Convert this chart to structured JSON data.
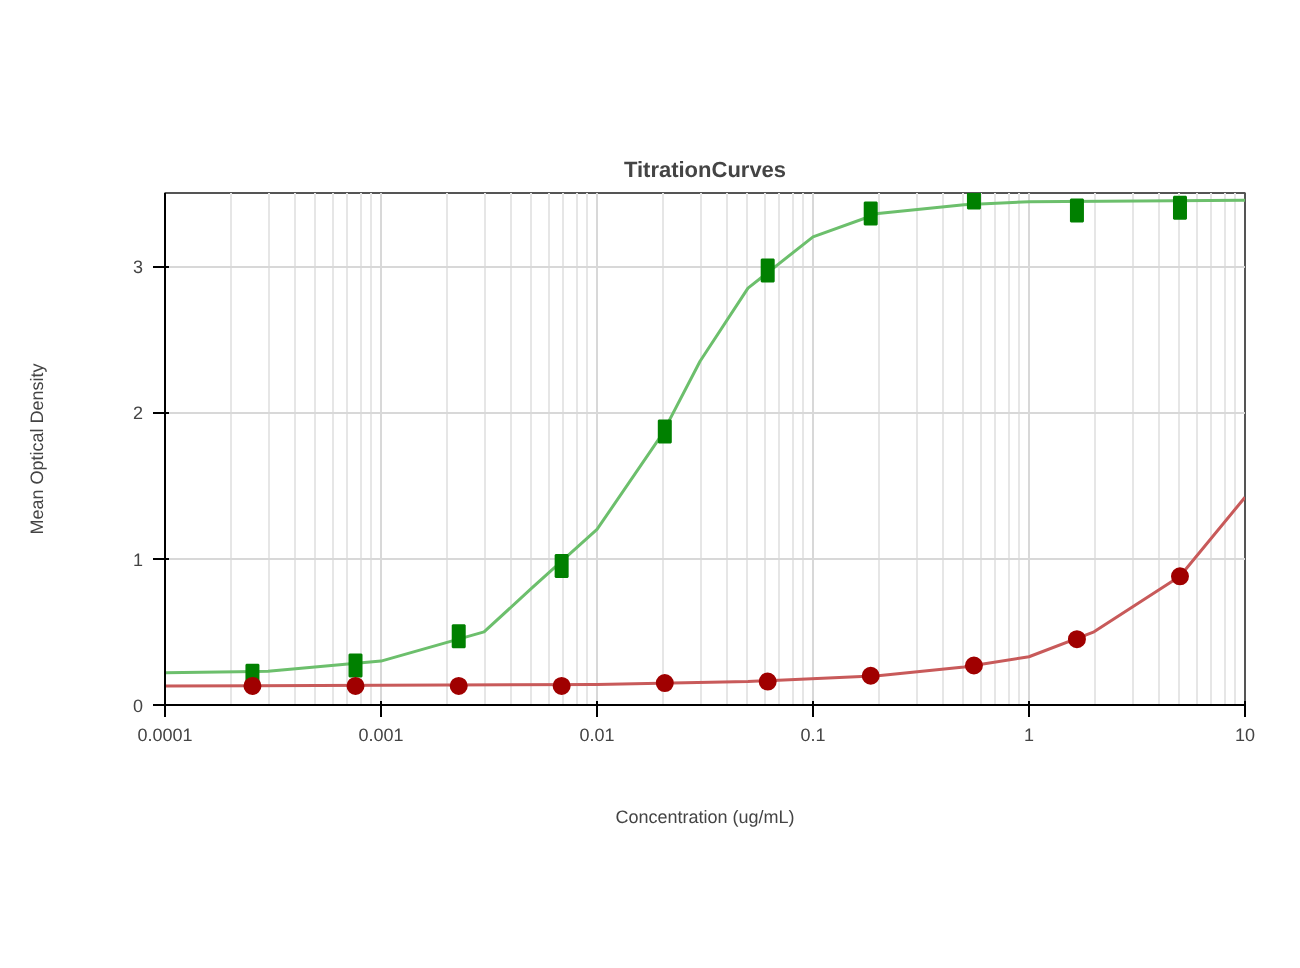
{
  "chart_data": {
    "type": "scatter",
    "title": "TitrationCurves",
    "xlabel": "Concentration (ug/mL)",
    "ylabel": "Mean Optical Density",
    "log": "x",
    "grid": true,
    "xlim": [
      0.0001,
      10
    ],
    "ylim": [
      0,
      3.5
    ],
    "xticks": [
      0.0001,
      0.001,
      0.01,
      0.1,
      1,
      10
    ],
    "yticks": [
      0,
      1,
      2,
      3
    ],
    "series": [
      {
        "type": "line",
        "color": "#6cbf6c",
        "x": [
          0.0001,
          0.0003,
          0.001,
          0.003,
          0.005,
          0.01,
          0.02,
          0.03,
          0.05,
          0.1,
          0.2,
          0.5,
          1,
          10
        ],
        "values": [
          0.22,
          0.23,
          0.3,
          0.5,
          0.8,
          1.2,
          1.85,
          2.35,
          2.85,
          3.2,
          3.36,
          3.42,
          3.44,
          3.45
        ]
      },
      {
        "type": "line",
        "color": "#c85a5a",
        "x": [
          0.0001,
          0.01,
          0.05,
          0.2,
          0.5,
          1,
          2,
          5,
          10
        ],
        "values": [
          0.13,
          0.14,
          0.16,
          0.2,
          0.26,
          0.33,
          0.5,
          0.88,
          1.42
        ]
      },
      {
        "color": "#008000",
        "marker": "square",
        "x": [
          0.000254,
          0.000762,
          0.00229,
          0.00686,
          0.0206,
          0.0617,
          0.185,
          0.556,
          1.667,
          5
        ],
        "values": [
          0.2,
          0.27,
          0.47,
          0.95,
          1.87,
          2.97,
          3.36,
          3.47,
          3.38,
          3.4
        ]
      },
      {
        "color": "#a00000",
        "marker": "circle",
        "x": [
          0.000254,
          0.000762,
          0.00229,
          0.00686,
          0.0206,
          0.0617,
          0.185,
          0.556,
          1.667,
          5
        ],
        "values": [
          0.13,
          0.13,
          0.13,
          0.13,
          0.15,
          0.16,
          0.2,
          0.27,
          0.45,
          0.88
        ]
      }
    ]
  }
}
